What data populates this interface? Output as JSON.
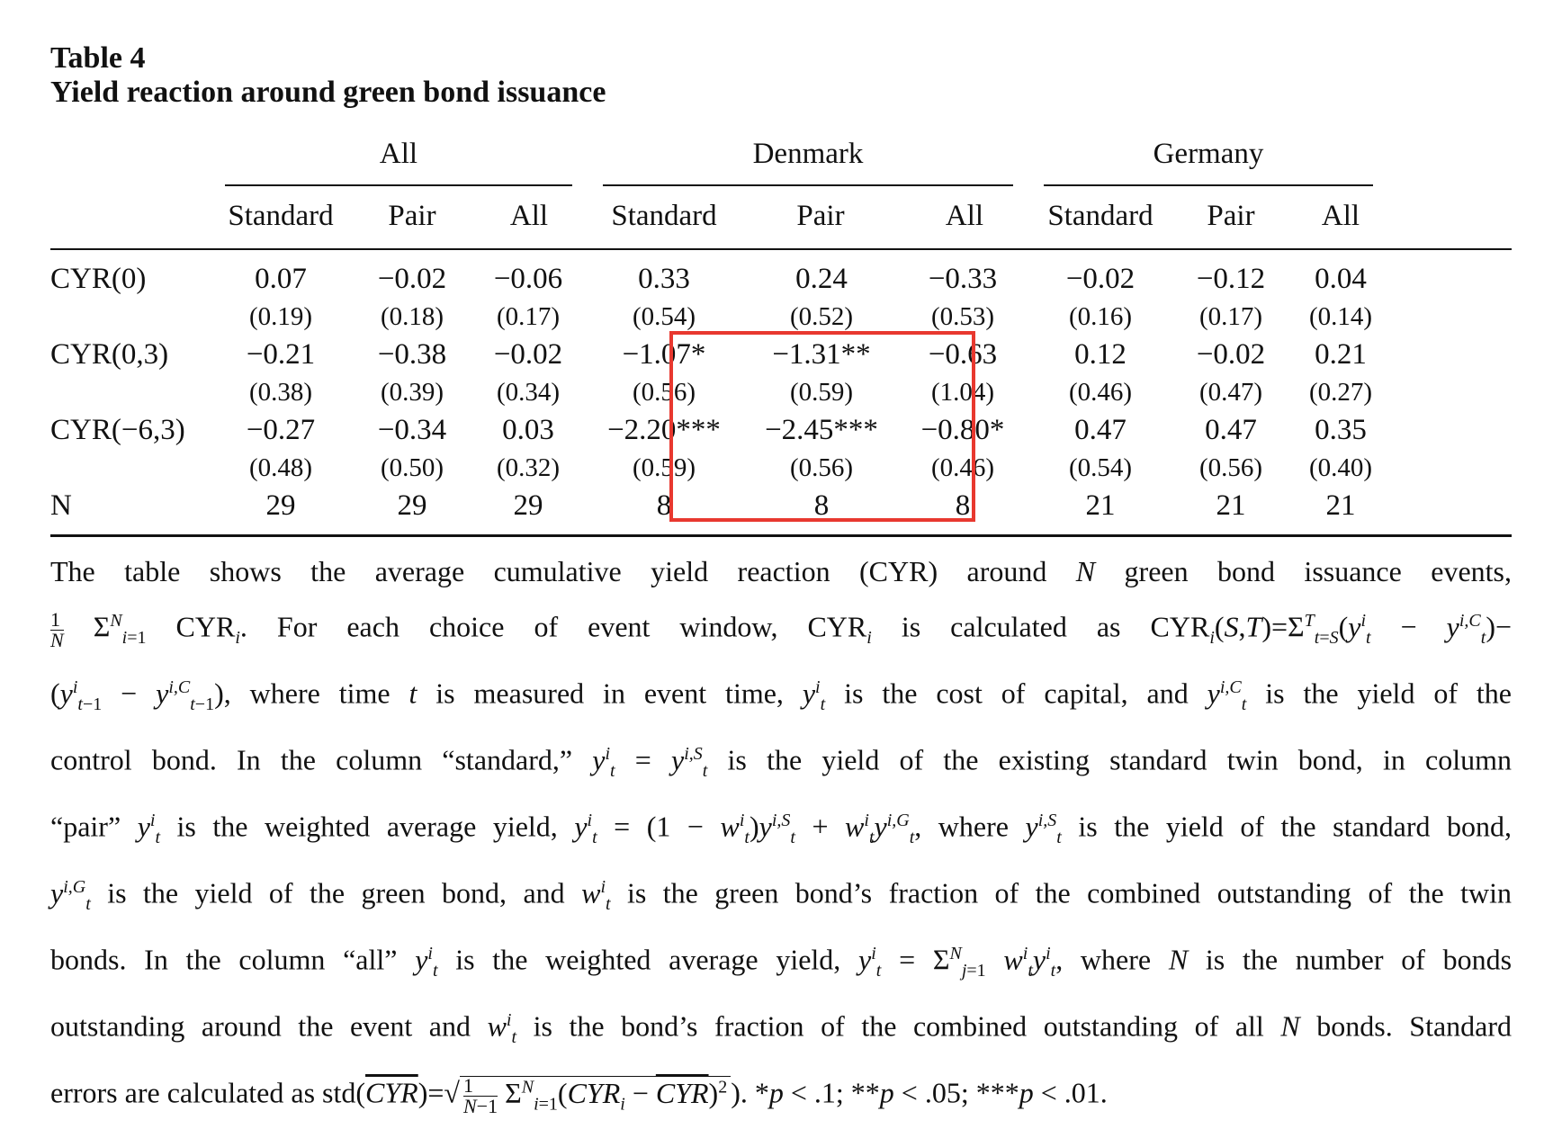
{
  "table": {
    "label": "Table 4",
    "caption": "Yield reaction around green bond issuance",
    "groups": [
      "All",
      "Denmark",
      "Germany"
    ],
    "columns": [
      "Standard",
      "Pair",
      "All",
      "Standard",
      "Pair",
      "All",
      "Standard",
      "Pair",
      "All"
    ],
    "rows": [
      {
        "label": "CYR(0)",
        "estimates": [
          "0.07",
          "−0.02",
          "−0.06",
          "0.33",
          "0.24",
          "−0.33",
          "−0.02",
          "−0.12",
          "0.04"
        ],
        "std_errors": [
          "(0.19)",
          "(0.18)",
          "(0.17)",
          "(0.54)",
          "(0.52)",
          "(0.53)",
          "(0.16)",
          "(0.17)",
          "(0.14)"
        ]
      },
      {
        "label": "CYR(0,3)",
        "estimates": [
          "−0.21",
          "−0.38",
          "−0.02",
          "−1.07*",
          "−1.31**",
          "−0.63",
          "0.12",
          "−0.02",
          "0.21"
        ],
        "std_errors": [
          "(0.38)",
          "(0.39)",
          "(0.34)",
          "(0.56)",
          "(0.59)",
          "(1.04)",
          "(0.46)",
          "(0.47)",
          "(0.27)"
        ]
      },
      {
        "label": "CYR(−6,3)",
        "estimates": [
          "−0.27",
          "−0.34",
          "0.03",
          "−2.20***",
          "−2.45***",
          "−0.80*",
          "0.47",
          "0.47",
          "0.35"
        ],
        "std_errors": [
          "(0.48)",
          "(0.50)",
          "(0.32)",
          "(0.59)",
          "(0.56)",
          "(0.46)",
          "(0.54)",
          "(0.56)",
          "(0.40)"
        ]
      }
    ],
    "n_row": {
      "label": "N",
      "values": [
        "29",
        "29",
        "29",
        "8",
        "8",
        "8",
        "21",
        "21",
        "21"
      ]
    }
  },
  "highlight_color": "#e8382f",
  "note": {
    "line1": "The table shows the average cumulative yield reaction (CYR) around N green bond issuance events,",
    "line2": "(1/N) Σ_{i=1}^{N} CYR_i. For each choice of event window, CYR_i is calculated as CYR_i(S,T) = Σ_{t=S}^{T} (y_t^i − y_t^{i,C}) −",
    "line3": "(y_{t−1}^i − y_{t−1}^{i,C}), where time t is measured in event time, y_t^i is the cost of capital, and y_t^{i,C} is the yield of the",
    "line4": "control bond. In the column “standard,” y_t^i = y_t^{i,S} is the yield of the existing standard twin bond, in column",
    "line5": "“pair” y_t^i is the weighted average yield, y_t^i = (1 − w_t^i) y_t^{i,S} + w_t^i y_t^{i,G}, where y_t^{i,S} is the yield of the standard bond,",
    "line6": "y_t^{i,G} is the yield of the green bond, and w_t^i is the green bond’s fraction of the combined outstanding of the twin",
    "line7": "bonds. In the column “all” y_t^i is the weighted average yield, y_t^i = Σ_{j=1}^{N} w_t^i y_t^i, where N is the number of bonds",
    "line8": "outstanding around the event and w_t^i is the bond’s fraction of the combined outstanding of all N bonds. Standard",
    "line9": "errors are calculated as std(CYR̄) = √( 1/(N−1) Σ_{i=1}^{N} (CYR_i − CYR̄)² ). *p < .1; **p < .05; ***p < .01."
  }
}
